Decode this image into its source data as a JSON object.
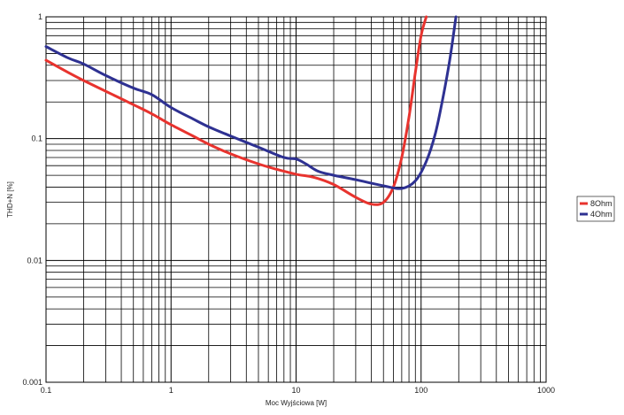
{
  "chart_data": {
    "type": "line",
    "title": "",
    "xlabel": "Moc Wyjściowa [W]",
    "ylabel": "THD+N [%]",
    "x_scale": "log",
    "y_scale": "log",
    "xlim": [
      0.1,
      1000
    ],
    "ylim": [
      0.001,
      1
    ],
    "x_ticks": [
      0.1,
      1,
      10,
      100,
      1000
    ],
    "x_tick_labels": [
      "0.1",
      "1",
      "10",
      "100",
      "1000"
    ],
    "y_ticks": [
      0.001,
      0.01,
      0.1,
      1
    ],
    "y_tick_labels": [
      "0.001",
      "0.01",
      "0.1",
      "1"
    ],
    "grid": true,
    "legend_position": "right",
    "series": [
      {
        "name": "8Ohm",
        "color": "#e8332e",
        "x": [
          0.1,
          0.15,
          0.2,
          0.3,
          0.5,
          0.7,
          1,
          1.5,
          2,
          3,
          5,
          7,
          10,
          14,
          20,
          30,
          40,
          50,
          60,
          70,
          80,
          90,
          100,
          110
        ],
        "y": [
          0.44,
          0.35,
          0.3,
          0.245,
          0.19,
          0.16,
          0.13,
          0.105,
          0.09,
          0.075,
          0.062,
          0.056,
          0.051,
          0.048,
          0.042,
          0.033,
          0.029,
          0.03,
          0.04,
          0.07,
          0.15,
          0.35,
          0.7,
          1.0
        ]
      },
      {
        "name": "4Ohm",
        "color": "#2e3192",
        "x": [
          0.1,
          0.15,
          0.2,
          0.3,
          0.5,
          0.7,
          1,
          1.5,
          2,
          3,
          5,
          8,
          10,
          12,
          15,
          20,
          30,
          50,
          70,
          90,
          110,
          130,
          150,
          170,
          190
        ],
        "y": [
          0.57,
          0.46,
          0.41,
          0.33,
          0.26,
          0.23,
          0.18,
          0.145,
          0.125,
          0.105,
          0.085,
          0.07,
          0.068,
          0.062,
          0.054,
          0.05,
          0.046,
          0.041,
          0.039,
          0.045,
          0.065,
          0.11,
          0.22,
          0.45,
          1.0
        ]
      }
    ]
  }
}
